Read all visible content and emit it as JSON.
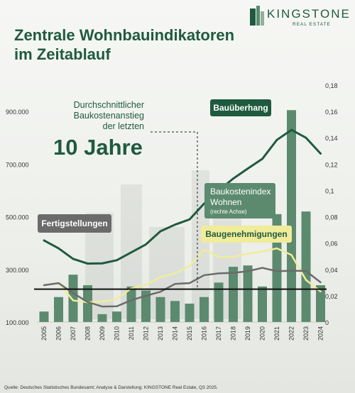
{
  "header": {
    "title_line1": "Zentrale Wohnbauindikatoren",
    "title_line2": "im Zeitablauf"
  },
  "logo": {
    "name": "KINGSTONE",
    "subtitle": "REAL ESTATE"
  },
  "source": "Quelle: Deutsches Statistisches Bundesamt; Analyse & Darstellung: KINGSTONE Real Estate, Q3 2025.",
  "colors": {
    "dark_green": "#1f5a3f",
    "bar_green": "#5c8a6f",
    "gray": "#6b6b6b",
    "yellow": "#f0ec9a",
    "black": "#111111"
  },
  "annotation": {
    "line1": "Durchschnittlicher",
    "line2": "Baukostenanstieg",
    "line3": "der letzten",
    "big": "10 Jahre"
  },
  "chart_data": {
    "type": "bar",
    "categories": [
      "2005",
      "2006",
      "2007",
      "2008",
      "2009",
      "2010",
      "2011",
      "2012",
      "2013",
      "2014",
      "2015",
      "2016",
      "2017",
      "2018",
      "2019",
      "2020",
      "2021",
      "2022",
      "2023",
      "2024"
    ],
    "left_axis": {
      "min": 100000,
      "max": 1000000,
      "ticks": [
        "100.000",
        "300.000",
        "500.000",
        "700.000",
        "900.000"
      ],
      "tick_values": [
        100000,
        300000,
        500000,
        700000,
        900000
      ]
    },
    "right_axis": {
      "min": 0,
      "max": 0.18,
      "ticks": [
        "0",
        "0,02",
        "0,04",
        "0,06",
        "0,08",
        "0,1",
        "0,12",
        "0,14",
        "0,16",
        "0,18"
      ],
      "tick_values": [
        0,
        0.02,
        0.04,
        0.06,
        0.08,
        0.1,
        0.12,
        0.14,
        0.16,
        0.18
      ]
    },
    "series": [
      {
        "name": "Baukostenindex Wohnen",
        "sublabel": "(rechte Achse)",
        "type": "bar",
        "axis": "right",
        "values": [
          0.008,
          0.019,
          0.036,
          0.028,
          0.006,
          0.008,
          0.027,
          0.024,
          0.019,
          0.016,
          0.014,
          0.019,
          0.03,
          0.042,
          0.043,
          0.027,
          0.082,
          0.161,
          0.084,
          0.028
        ]
      },
      {
        "name": "Bauüberhang",
        "type": "line",
        "axis": "left",
        "values": [
          410000,
          380000,
          340000,
          322000,
          323000,
          335000,
          365000,
          395000,
          445000,
          470000,
          490000,
          550000,
          600000,
          645000,
          683000,
          720000,
          792000,
          830000,
          800000,
          740000
        ]
      },
      {
        "name": "Fertigstellungen",
        "type": "line",
        "axis": "left",
        "values": [
          240000,
          248000,
          210000,
          176000,
          159000,
          160000,
          183000,
          200000,
          215000,
          245000,
          248000,
          278000,
          285000,
          287000,
          293000,
          306000,
          293000,
          295000,
          294000,
          251000
        ]
      },
      {
        "name": "Baugenehmigungen",
        "type": "line",
        "axis": "left",
        "values": [
          240000,
          250000,
          182000,
          175000,
          178000,
          188000,
          228000,
          242000,
          270000,
          285000,
          313000,
          375000,
          348000,
          347000,
          360000,
          368000,
          380000,
          355000,
          260000,
          216000
        ]
      }
    ],
    "reference_line": {
      "axis": "right",
      "value": 0.025
    },
    "xlabel": "",
    "ylabel": ""
  }
}
